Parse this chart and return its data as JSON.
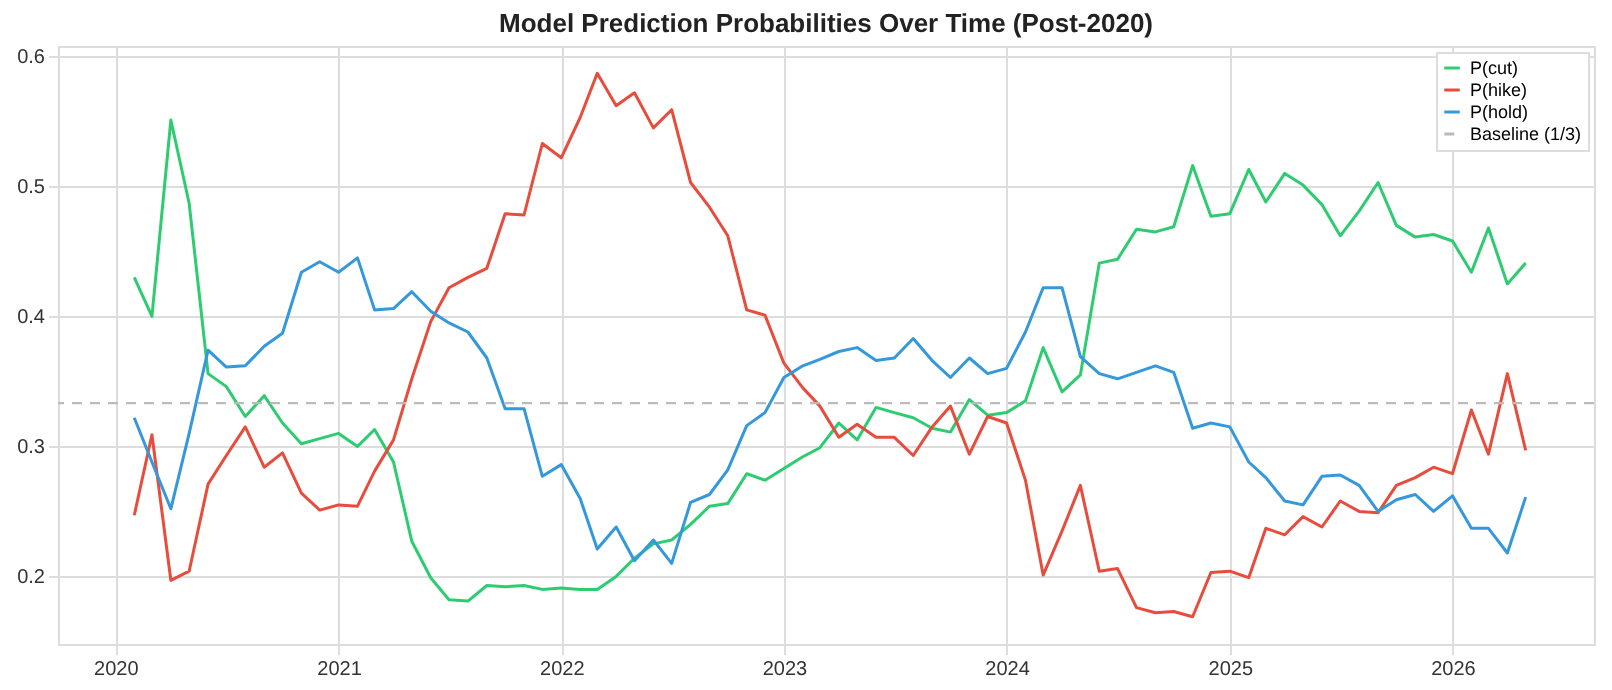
{
  "chart_data": {
    "type": "line",
    "title": "Model Prediction Probabilities Over Time (Post-2020)",
    "x": [
      "2020-02",
      "2020-03",
      "2020-04",
      "2020-05",
      "2020-06",
      "2020-07",
      "2020-08",
      "2020-09",
      "2020-10",
      "2020-11",
      "2020-12",
      "2021-01",
      "2021-02",
      "2021-03",
      "2021-04",
      "2021-05",
      "2021-06",
      "2021-07",
      "2021-08",
      "2021-09",
      "2021-10",
      "2021-11",
      "2021-12",
      "2022-01",
      "2022-02",
      "2022-03",
      "2022-04",
      "2022-05",
      "2022-06",
      "2022-07",
      "2022-08",
      "2022-09",
      "2022-10",
      "2022-11",
      "2022-12",
      "2023-01",
      "2023-02",
      "2023-03",
      "2023-04",
      "2023-05",
      "2023-06",
      "2023-07",
      "2023-08",
      "2023-09",
      "2023-10",
      "2023-11",
      "2023-12",
      "2024-01",
      "2024-02",
      "2024-03",
      "2024-04",
      "2024-05",
      "2024-06",
      "2024-07",
      "2024-08",
      "2024-09",
      "2024-10",
      "2024-11",
      "2024-12",
      "2025-01",
      "2025-02",
      "2025-03",
      "2025-04",
      "2025-05",
      "2025-06",
      "2025-07",
      "2025-08",
      "2025-09",
      "2025-10",
      "2025-11",
      "2025-12",
      "2026-01",
      "2026-02",
      "2026-03",
      "2026-04",
      "2026-05"
    ],
    "series": [
      {
        "name": "P(cut)",
        "color": "#2ecc71",
        "values": [
          0.43,
          0.4,
          0.551,
          0.487,
          0.356,
          0.346,
          0.323,
          0.339,
          0.318,
          0.302,
          0.306,
          0.31,
          0.3,
          0.313,
          0.288,
          0.227,
          0.199,
          0.182,
          0.181,
          0.193,
          0.192,
          0.193,
          0.19,
          0.191,
          0.19,
          0.19,
          0.2,
          0.214,
          0.225,
          0.228,
          0.24,
          0.254,
          0.256,
          0.279,
          0.274,
          0.283,
          0.292,
          0.299,
          0.318,
          0.305,
          0.33,
          0.326,
          0.322,
          0.314,
          0.311,
          0.336,
          0.324,
          0.326,
          0.335,
          0.376,
          0.342,
          0.355,
          0.441,
          0.444,
          0.467,
          0.465,
          0.469,
          0.516,
          0.477,
          0.479,
          0.513,
          0.488,
          0.51,
          0.501,
          0.486,
          0.462,
          0.481,
          0.503,
          0.47,
          0.461,
          0.463,
          0.458,
          0.434,
          0.468,
          0.425,
          0.441
        ]
      },
      {
        "name": "P(hike)",
        "color": "#e74c3c",
        "values": [
          0.247,
          0.309,
          0.197,
          0.204,
          0.271,
          0.293,
          0.315,
          0.284,
          0.295,
          0.264,
          0.251,
          0.255,
          0.254,
          0.281,
          0.305,
          0.352,
          0.396,
          0.422,
          0.43,
          0.437,
          0.479,
          0.478,
          0.533,
          0.522,
          0.553,
          0.587,
          0.562,
          0.572,
          0.545,
          0.559,
          0.503,
          0.484,
          0.462,
          0.405,
          0.401,
          0.364,
          0.345,
          0.331,
          0.307,
          0.317,
          0.307,
          0.307,
          0.293,
          0.315,
          0.331,
          0.294,
          0.323,
          0.318,
          0.274,
          0.201,
          0.235,
          0.27,
          0.204,
          0.206,
          0.176,
          0.172,
          0.173,
          0.169,
          0.203,
          0.204,
          0.199,
          0.237,
          0.232,
          0.246,
          0.238,
          0.258,
          0.25,
          0.249,
          0.27,
          0.276,
          0.284,
          0.279,
          0.328,
          0.294,
          0.356,
          0.297
        ]
      },
      {
        "name": "P(hold)",
        "color": "#3498db",
        "values": [
          0.322,
          0.288,
          0.252,
          0.31,
          0.374,
          0.361,
          0.362,
          0.377,
          0.387,
          0.434,
          0.442,
          0.434,
          0.445,
          0.405,
          0.406,
          0.419,
          0.404,
          0.395,
          0.388,
          0.368,
          0.329,
          0.329,
          0.277,
          0.286,
          0.26,
          0.221,
          0.238,
          0.212,
          0.228,
          0.21,
          0.257,
          0.263,
          0.282,
          0.316,
          0.326,
          0.353,
          0.362,
          0.367,
          0.373,
          0.376,
          0.366,
          0.368,
          0.383,
          0.366,
          0.353,
          0.368,
          0.356,
          0.36,
          0.388,
          0.422,
          0.422,
          0.369,
          0.356,
          0.352,
          0.357,
          0.362,
          0.357,
          0.314,
          0.318,
          0.315,
          0.288,
          0.276,
          0.258,
          0.255,
          0.277,
          0.278,
          0.27,
          0.25,
          0.259,
          0.263,
          0.25,
          0.262,
          0.237,
          0.237,
          0.218,
          0.261
        ]
      }
    ],
    "ref_lines": [
      {
        "axis": "y",
        "value": 0.3333,
        "label": "Baseline (1/3)",
        "color": "#bbbbbb",
        "line_style": "dashed"
      }
    ],
    "xlim": [
      "2019-09-29",
      "2026-08-21"
    ],
    "xticks": [
      "2020",
      "2021",
      "2022",
      "2023",
      "2024",
      "2025",
      "2026"
    ],
    "ylim": [
      0.148,
      0.608
    ],
    "yticks": [
      0.2,
      0.3,
      0.4,
      0.5,
      0.6
    ],
    "grid": true,
    "legend": "top right",
    "line_style": "solid",
    "marker": "none"
  }
}
